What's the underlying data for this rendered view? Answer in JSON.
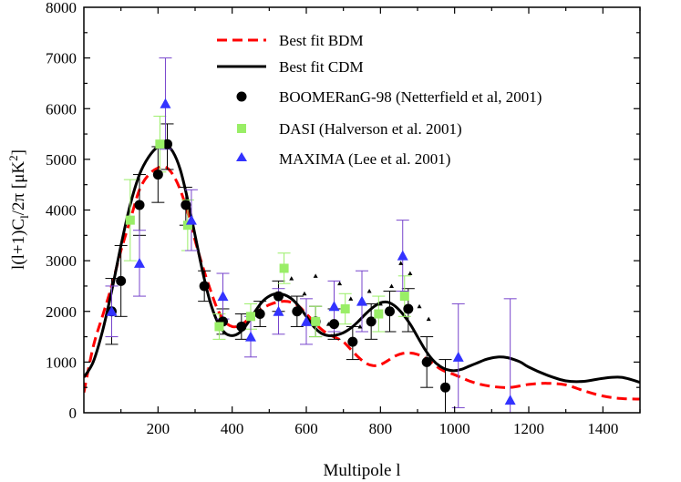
{
  "chart_data": {
    "type": "scatter",
    "title": "",
    "xlabel": "Multipole l",
    "ylabel": "l(l+1)C",
    "ylabel_sub": "l",
    "ylabel_tail": "/2π [μK",
    "ylabel_sup": "2",
    "ylabel_close": "]",
    "xlim": [
      0,
      1500
    ],
    "ylim": [
      0,
      8000
    ],
    "x_ticks": [
      200,
      400,
      600,
      800,
      1000,
      1200,
      1400
    ],
    "y_ticks": [
      0,
      1000,
      2000,
      3000,
      4000,
      5000,
      6000,
      7000,
      8000
    ],
    "grid": false,
    "legend_position": "top-right",
    "colors": {
      "bdm": "#ff0000",
      "cdm": "#000000",
      "boomerang": "#000000",
      "dasi": "#99ee66",
      "maxima": "#3333ff",
      "maxima_bar": "#7744cc"
    },
    "lines": [
      {
        "name": "Best fit BDM",
        "style": "dashed",
        "x": [
          0,
          25,
          50,
          75,
          100,
          125,
          150,
          175,
          200,
          220,
          240,
          260,
          280,
          300,
          320,
          340,
          360,
          380,
          400,
          420,
          440,
          460,
          480,
          500,
          520,
          540,
          560,
          580,
          600,
          620,
          640,
          660,
          680,
          700,
          720,
          740,
          760,
          780,
          800,
          820,
          840,
          860,
          880,
          900,
          920,
          940,
          960,
          980,
          1000,
          1050,
          1100,
          1150,
          1200,
          1250,
          1300,
          1350,
          1400,
          1450,
          1500
        ],
        "y": [
          400,
          1300,
          1900,
          2500,
          3200,
          3800,
          4400,
          4700,
          4830,
          4850,
          4700,
          4400,
          3950,
          3400,
          2900,
          2450,
          2050,
          1800,
          1700,
          1720,
          1820,
          1960,
          2050,
          2130,
          2180,
          2200,
          2180,
          2100,
          1950,
          1800,
          1650,
          1550,
          1480,
          1400,
          1250,
          1100,
          980,
          930,
          950,
          1030,
          1120,
          1170,
          1180,
          1150,
          1080,
          980,
          870,
          800,
          750,
          600,
          520,
          500,
          560,
          580,
          550,
          430,
          330,
          280,
          270
        ]
      },
      {
        "name": "Best fit CDM",
        "style": "solid",
        "x": [
          0,
          25,
          50,
          75,
          100,
          125,
          150,
          175,
          200,
          220,
          240,
          260,
          280,
          300,
          320,
          340,
          360,
          380,
          400,
          420,
          440,
          460,
          480,
          500,
          520,
          540,
          560,
          580,
          600,
          620,
          640,
          660,
          680,
          700,
          720,
          740,
          760,
          780,
          800,
          820,
          840,
          860,
          880,
          900,
          920,
          940,
          960,
          980,
          1000,
          1020,
          1040,
          1060,
          1080,
          1100,
          1120,
          1140,
          1160,
          1180,
          1200,
          1250,
          1300,
          1350,
          1400,
          1450,
          1500
        ],
        "y": [
          700,
          1000,
          1600,
          2400,
          3300,
          4100,
          4700,
          5050,
          5250,
          5280,
          5150,
          4800,
          4200,
          3500,
          2800,
          2200,
          1800,
          1580,
          1520,
          1580,
          1750,
          1980,
          2180,
          2300,
          2350,
          2330,
          2250,
          2100,
          1900,
          1700,
          1570,
          1520,
          1530,
          1580,
          1670,
          1800,
          1950,
          2080,
          2170,
          2180,
          2100,
          1950,
          1750,
          1500,
          1250,
          1050,
          920,
          850,
          830,
          860,
          920,
          980,
          1040,
          1080,
          1100,
          1090,
          1050,
          990,
          900,
          740,
          630,
          620,
          680,
          700,
          600
        ]
      }
    ],
    "series": [
      {
        "name": "BOOMERanG-98 (Netterfield et al, 2001)",
        "marker": "circle",
        "x": [
          75,
          100,
          150,
          200,
          225,
          275,
          325,
          375,
          425,
          475,
          525,
          575,
          625,
          675,
          725,
          775,
          825,
          875,
          925,
          975
        ],
        "y": [
          2000,
          2600,
          4100,
          4700,
          5300,
          4100,
          2500,
          1800,
          1700,
          1950,
          2300,
          2000,
          1800,
          1750,
          1400,
          1800,
          2000,
          2050,
          1000,
          500
        ],
        "err_minus": [
          650,
          700,
          600,
          550,
          500,
          400,
          300,
          250,
          250,
          250,
          300,
          300,
          300,
          300,
          350,
          350,
          400,
          450,
          500,
          550
        ],
        "err_plus": [
          650,
          700,
          600,
          550,
          400,
          350,
          300,
          250,
          250,
          250,
          300,
          300,
          300,
          300,
          300,
          350,
          400,
          400,
          500,
          550
        ]
      },
      {
        "name": "DASI (Halverson et al. 2001)",
        "marker": "square",
        "x": [
          125,
          205,
          280,
          365,
          450,
          540,
          625,
          705,
          795,
          865
        ],
        "y": [
          3800,
          5300,
          3700,
          1700,
          1900,
          2850,
          1800,
          2050,
          1950,
          2300
        ],
        "err_minus": [
          800,
          550,
          500,
          250,
          250,
          300,
          300,
          300,
          350,
          400
        ],
        "err_plus": [
          800,
          550,
          500,
          250,
          250,
          300,
          300,
          300,
          350,
          400
        ]
      },
      {
        "name": "MAXIMA (Lee et al. 2001)",
        "marker": "triangle",
        "x": [
          75,
          150,
          220,
          290,
          375,
          450,
          525,
          600,
          675,
          750,
          860,
          1010,
          1150
        ],
        "y": [
          2000,
          2950,
          6100,
          3800,
          2300,
          1500,
          2000,
          1800,
          2100,
          2200,
          3100,
          1100,
          250
        ],
        "err_minus": [
          500,
          650,
          900,
          600,
          450,
          400,
          450,
          450,
          500,
          600,
          700,
          1000,
          1250
        ],
        "err_plus": [
          500,
          650,
          900,
          600,
          450,
          400,
          450,
          450,
          500,
          600,
          700,
          1050,
          2000
        ]
      }
    ],
    "extra_points": {
      "marker": "small-triangle",
      "x": [
        560,
        595,
        625,
        660,
        690,
        720,
        745,
        770,
        800,
        830,
        855,
        880,
        905,
        930
      ],
      "y": [
        2650,
        2350,
        2700,
        1750,
        2550,
        2250,
        1700,
        2400,
        2150,
        2500,
        2950,
        2750,
        2100,
        1850
      ]
    }
  }
}
